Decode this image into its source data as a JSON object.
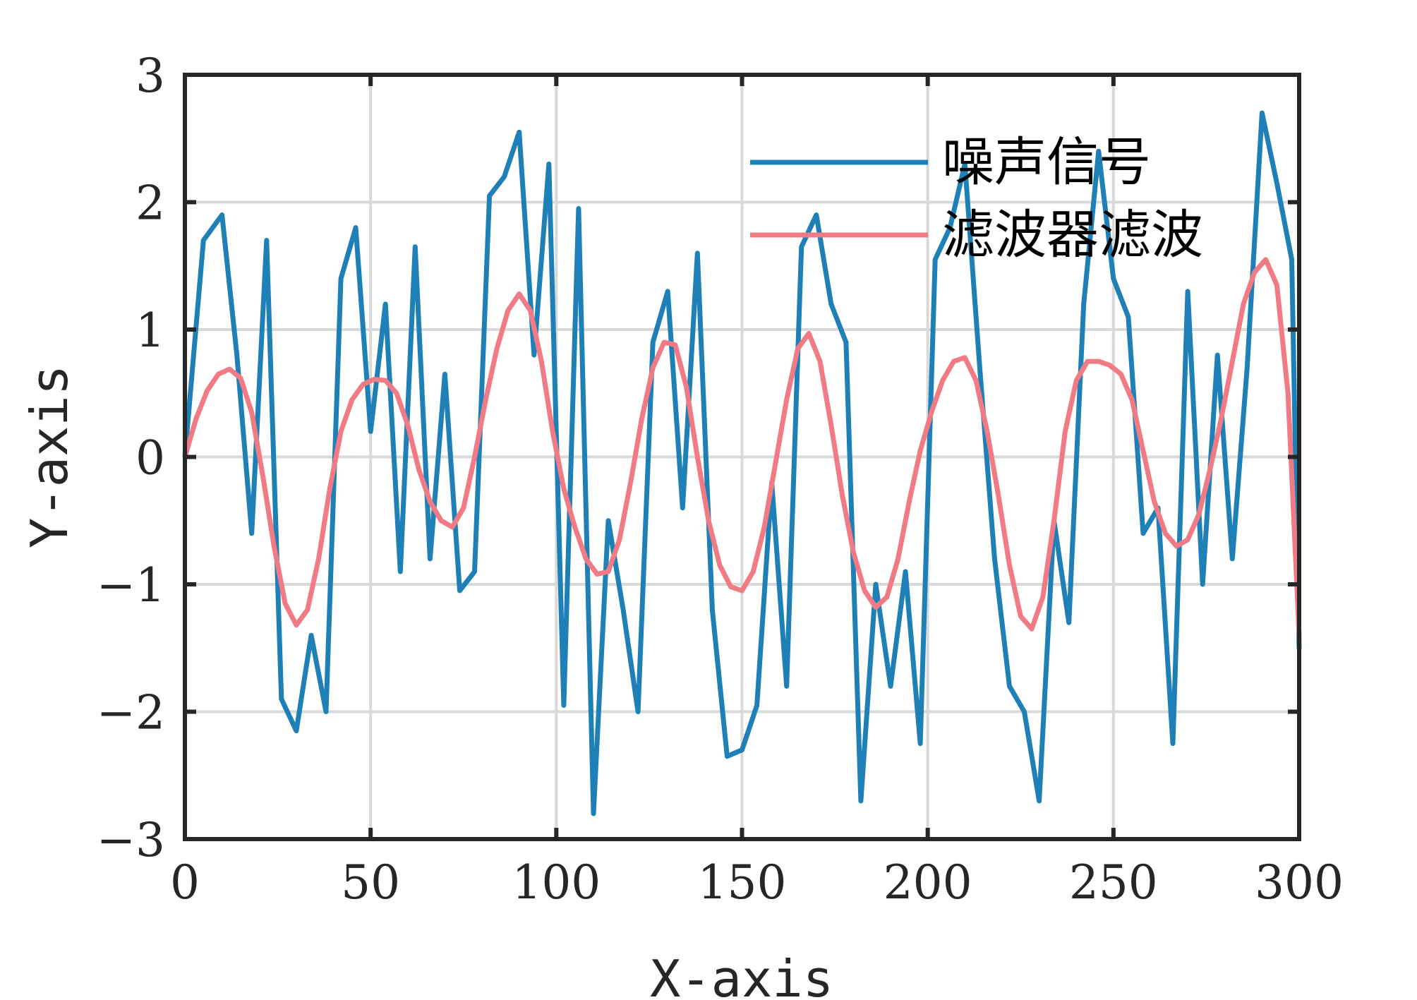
{
  "chart_data": {
    "type": "line",
    "title": "",
    "xlabel": "X-axis",
    "ylabel": "Y-axis",
    "xlim": [
      0,
      300
    ],
    "ylim": [
      -3,
      3
    ],
    "xticks": [
      0,
      50,
      100,
      150,
      200,
      250,
      300
    ],
    "yticks": [
      -3,
      -2,
      -1,
      0,
      1,
      2,
      3
    ],
    "xtick_labels": [
      "0",
      "50",
      "100",
      "150",
      "200",
      "250",
      "300"
    ],
    "ytick_labels": [
      "−3",
      "−2",
      "−1",
      "0",
      "1",
      "2",
      "3"
    ],
    "grid": true,
    "legend_position": "top-right",
    "series": [
      {
        "name": "噪声信号",
        "color": "#1f80b8",
        "x": [
          0,
          5,
          10,
          14,
          18,
          22,
          26,
          30,
          34,
          38,
          42,
          46,
          50,
          54,
          58,
          62,
          66,
          70,
          74,
          78,
          82,
          86,
          90,
          94,
          98,
          102,
          106,
          110,
          114,
          118,
          122,
          126,
          130,
          134,
          138,
          142,
          146,
          150,
          154,
          158,
          162,
          166,
          170,
          174,
          178,
          182,
          186,
          190,
          194,
          198,
          202,
          206,
          210,
          214,
          218,
          222,
          226,
          230,
          234,
          238,
          242,
          246,
          250,
          254,
          258,
          262,
          266,
          270,
          274,
          278,
          282,
          286,
          290,
          294,
          298,
          300
        ],
        "y": [
          0.0,
          1.7,
          1.9,
          0.8,
          -0.6,
          1.7,
          -1.9,
          -2.15,
          -1.4,
          -2.0,
          1.4,
          1.8,
          0.2,
          1.2,
          -0.9,
          1.65,
          -0.8,
          0.65,
          -1.05,
          -0.9,
          2.05,
          2.2,
          2.55,
          0.8,
          2.3,
          -1.95,
          1.95,
          -2.8,
          -0.5,
          -1.2,
          -2.0,
          0.9,
          1.3,
          -0.4,
          1.6,
          -1.2,
          -2.35,
          -2.3,
          -1.95,
          -0.2,
          -1.8,
          1.65,
          1.9,
          1.2,
          0.9,
          -2.7,
          -1.0,
          -1.8,
          -0.9,
          -2.25,
          1.55,
          1.8,
          2.3,
          0.7,
          -0.8,
          -1.8,
          -2.0,
          -2.7,
          -0.5,
          -1.3,
          1.2,
          2.4,
          1.4,
          1.1,
          -0.6,
          -0.4,
          -2.25,
          1.3,
          -1.0,
          0.8,
          -0.8,
          0.7,
          2.7,
          2.15,
          1.55,
          -1.5
        ]
      },
      {
        "name": "滤波器滤波",
        "color": "#f07b84",
        "x": [
          0,
          3,
          6,
          9,
          12,
          15,
          18,
          21,
          24,
          27,
          30,
          33,
          36,
          39,
          42,
          45,
          48,
          51,
          54,
          57,
          60,
          63,
          66,
          69,
          72,
          75,
          78,
          81,
          84,
          87,
          90,
          93,
          96,
          99,
          102,
          105,
          108,
          111,
          114,
          117,
          120,
          123,
          126,
          129,
          132,
          135,
          138,
          141,
          144,
          147,
          150,
          153,
          156,
          159,
          162,
          165,
          168,
          171,
          174,
          177,
          180,
          183,
          186,
          189,
          192,
          195,
          198,
          201,
          204,
          207,
          210,
          213,
          216,
          219,
          222,
          225,
          228,
          231,
          234,
          237,
          240,
          243,
          246,
          249,
          252,
          255,
          258,
          261,
          264,
          267,
          270,
          273,
          276,
          279,
          282,
          285,
          288,
          291,
          294,
          297,
          300
        ],
        "y": [
          0.0,
          0.3,
          0.52,
          0.65,
          0.69,
          0.62,
          0.35,
          -0.15,
          -0.7,
          -1.15,
          -1.32,
          -1.2,
          -0.8,
          -0.25,
          0.2,
          0.45,
          0.57,
          0.61,
          0.6,
          0.5,
          0.25,
          -0.1,
          -0.35,
          -0.5,
          -0.55,
          -0.4,
          0.0,
          0.45,
          0.85,
          1.15,
          1.28,
          1.15,
          0.75,
          0.2,
          -0.25,
          -0.55,
          -0.8,
          -0.92,
          -0.9,
          -0.65,
          -0.2,
          0.3,
          0.7,
          0.9,
          0.88,
          0.55,
          0.0,
          -0.5,
          -0.85,
          -1.02,
          -1.05,
          -0.9,
          -0.55,
          -0.05,
          0.45,
          0.85,
          0.97,
          0.75,
          0.25,
          -0.3,
          -0.75,
          -1.05,
          -1.18,
          -1.1,
          -0.8,
          -0.35,
          0.05,
          0.35,
          0.6,
          0.75,
          0.78,
          0.6,
          0.2,
          -0.3,
          -0.85,
          -1.25,
          -1.35,
          -1.1,
          -0.5,
          0.2,
          0.6,
          0.75,
          0.75,
          0.72,
          0.65,
          0.45,
          0.05,
          -0.35,
          -0.6,
          -0.7,
          -0.65,
          -0.45,
          -0.1,
          0.3,
          0.75,
          1.2,
          1.45,
          1.55,
          1.35,
          0.5,
          -1.4
        ]
      }
    ]
  }
}
